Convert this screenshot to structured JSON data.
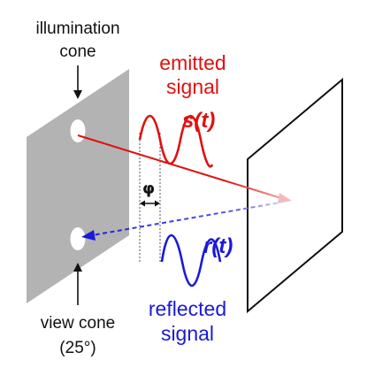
{
  "labels": {
    "illumination_line1": "illumination",
    "illumination_line2": "cone",
    "emitted_line1": "emitted",
    "emitted_line2": "signal",
    "emitted_func": "s(t)",
    "phase": "φ",
    "reflected_func": "r(t)",
    "reflected_line1": "reflected",
    "reflected_line2": "signal",
    "view_line1": "view cone",
    "view_line2": "(25°)"
  },
  "colors": {
    "emitted": "#e01010",
    "reflected": "#1a1ad8",
    "sensor_panel": "#b3b3b3",
    "target_frame": "#111111"
  }
}
